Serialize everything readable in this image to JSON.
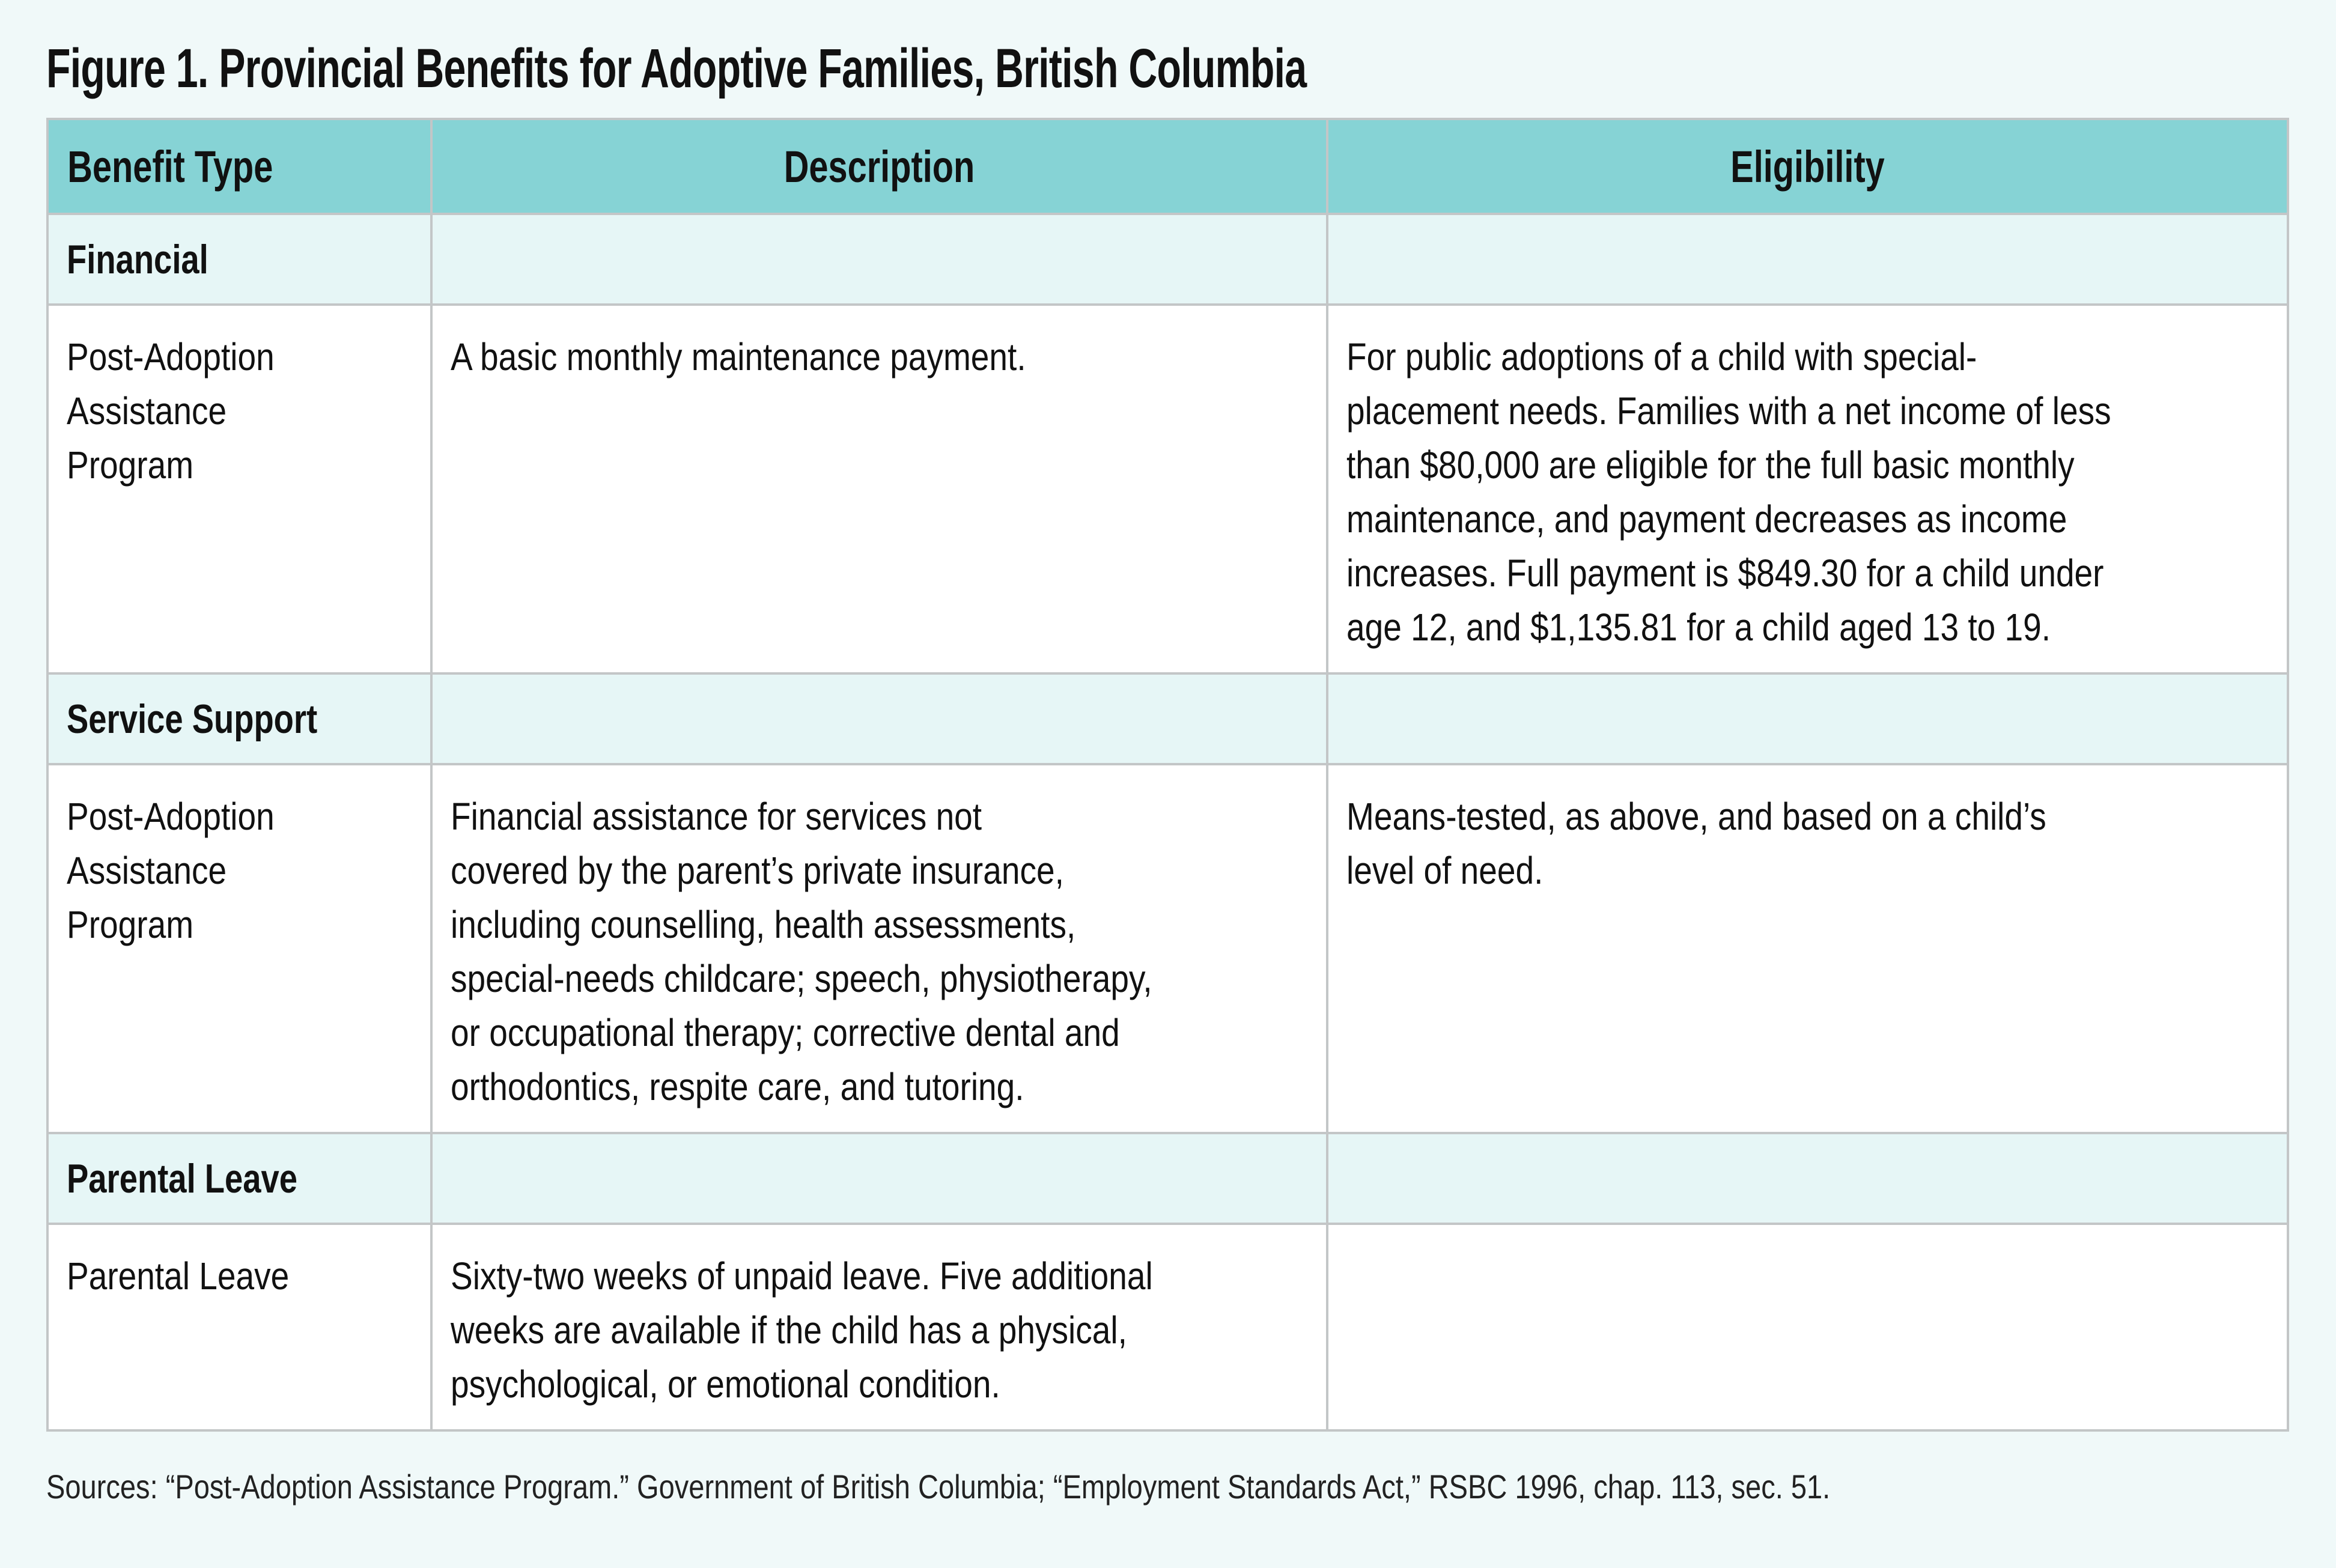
{
  "title": "Figure 1. Provincial Benefits for Adoptive Families, British Columbia",
  "header": {
    "benefit_type": "Benefit Type",
    "description": "Description",
    "eligibility": "Eligibility"
  },
  "sections": [
    {
      "category": "Financial",
      "row": {
        "benefit": [
          "Post-Adoption",
          "Assistance",
          "Program"
        ],
        "description": [
          "A basic monthly maintenance payment."
        ],
        "eligibility": [
          "For public adoptions of a child with special-",
          "placement needs. Families with a net income of less",
          "than $80,000 are eligible for the full basic monthly",
          "maintenance, and payment decreases as income",
          "increases. Full payment is $849.30 for a child under",
          "age 12, and $1,135.81 for a child aged 13 to 19."
        ]
      }
    },
    {
      "category": "Service Support",
      "row": {
        "benefit": [
          "Post-Adoption",
          "Assistance",
          "Program"
        ],
        "description": [
          "Financial assistance for services not",
          "covered by the parent’s private insurance,",
          "including counselling, health assessments,",
          "special-needs childcare; speech, physiotherapy,",
          "or occupational therapy; corrective dental and",
          "orthodontics, respite care, and tutoring."
        ],
        "eligibility": [
          "Means-tested, as above, and based on a child’s",
          "level of need."
        ]
      }
    },
    {
      "category": "Parental Leave",
      "row": {
        "benefit": [
          "Parental Leave"
        ],
        "description": [
          "Sixty-two weeks of unpaid leave. Five additional",
          "weeks are available if the child has a physical,",
          "psychological, or emotional condition."
        ],
        "eligibility": []
      }
    }
  ],
  "sources": "Sources: “Post-Adoption Assistance Program.” Government of British Columbia; “Employment Standards Act,” RSBC 1996, chap. 113, sec. 51.",
  "colors": {
    "header_bg": "#86d3d5",
    "category_bg": "#e6f6f6",
    "page_bg": "#f0f9f9"
  }
}
